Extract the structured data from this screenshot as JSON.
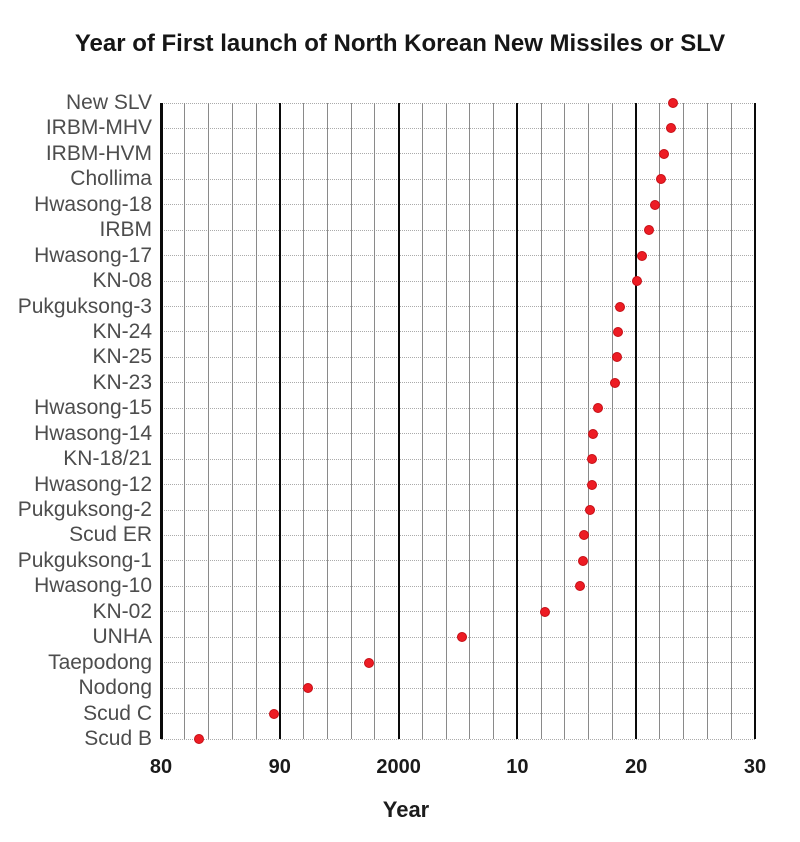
{
  "chart_data": {
    "type": "scatter",
    "title": "Year of First launch of North Korean New Missiles or SLV",
    "xlabel": "Year",
    "xlim": [
      1980,
      2030
    ],
    "x_major_ticks": [
      {
        "value": 1980,
        "label": "80"
      },
      {
        "value": 1990,
        "label": "90"
      },
      {
        "value": 2000,
        "label": "2000"
      },
      {
        "value": 2010,
        "label": "10"
      },
      {
        "value": 2020,
        "label": "20"
      },
      {
        "value": 2030,
        "label": "30"
      }
    ],
    "x_minor_step_years": 2,
    "grid": {
      "vertical": "on",
      "horizontal": "dotted-per-row",
      "legend": "none"
    },
    "marker_color": "#ed1c24",
    "categories": [
      "New SLV",
      "IRBM-MHV",
      "IRBM-HVM",
      "Chollima",
      "Hwasong-18",
      "IRBM",
      "Hwasong-17",
      "KN-08",
      "Pukguksong-3",
      "KN-24",
      "KN-25",
      "KN-23",
      "Hwasong-15",
      "Hwasong-14",
      "KN-18/21",
      "Hwasong-12",
      "Pukguksong-2",
      "Scud ER",
      "Pukguksong-1",
      "Hwasong-10",
      "KN-02",
      "UNHA",
      "Taepodong",
      "Nodong",
      "Scud C",
      "Scud B"
    ],
    "values": [
      2023.1,
      2022.9,
      2022.3,
      2022.1,
      2021.6,
      2021.1,
      2020.5,
      2020.1,
      2018.6,
      2018.5,
      2018.4,
      2018.2,
      2016.8,
      2016.4,
      2016.25,
      2016.3,
      2016.1,
      2015.6,
      2015.5,
      2015.3,
      2012.3,
      2005.3,
      1997.5,
      1992.4,
      1989.5,
      1983.2
    ]
  }
}
